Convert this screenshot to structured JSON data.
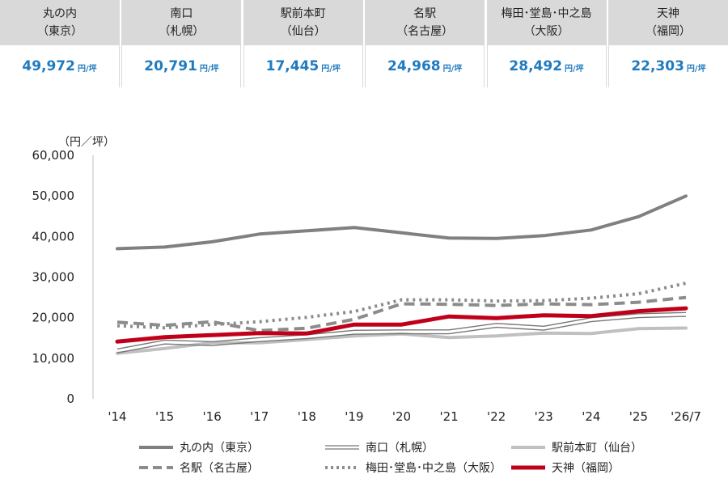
{
  "summary": {
    "unit": "円/坪",
    "cards": [
      {
        "name": "丸の内",
        "region": "（東京）",
        "value": "49,972"
      },
      {
        "name": "南口",
        "region": "（札幌）",
        "value": "20,791"
      },
      {
        "name": "駅前本町",
        "region": "（仙台）",
        "value": "17,445"
      },
      {
        "name": "名駅",
        "region": "（名古屋）",
        "value": "24,968"
      },
      {
        "name": "梅田･堂島･中之島",
        "region": "（大阪）",
        "value": "28,492"
      },
      {
        "name": "天神",
        "region": "（福岡）",
        "value": "22,303"
      }
    ]
  },
  "chart_data": {
    "type": "line",
    "ylabel": "（円／坪）",
    "ylim": [
      0,
      60000
    ],
    "yticks": [
      "0",
      "10,000",
      "20,000",
      "30,000",
      "40,000",
      "50,000",
      "60,000"
    ],
    "categories": [
      "'14",
      "'15",
      "'16",
      "'17",
      "'18",
      "'19",
      "'20",
      "'21",
      "'22",
      "'23",
      "'24",
      "'25",
      "'26/7"
    ],
    "grid": false,
    "legend_position": "bottom",
    "series": [
      {
        "name": "丸の内（東京）",
        "color": "#808080",
        "style": "solid",
        "values": [
          37000,
          37400,
          38700,
          40600,
          41400,
          42200,
          40900,
          39600,
          39500,
          40200,
          41600,
          44900,
          49972
        ]
      },
      {
        "name": "南口（札幌）",
        "color": "#777777",
        "style": "double",
        "values": [
          11800,
          14000,
          13600,
          14600,
          15300,
          16400,
          16500,
          16500,
          18100,
          17400,
          19500,
          20500,
          20791
        ]
      },
      {
        "name": "駅前本町（仙台）",
        "color": "#c0c0c0",
        "style": "solid",
        "values": [
          11200,
          12400,
          13800,
          13800,
          14600,
          15500,
          16000,
          15100,
          15500,
          16200,
          16100,
          17300,
          17445
        ]
      },
      {
        "name": "名駅（名古屋）",
        "color": "#8c8c8c",
        "style": "dashed",
        "values": [
          18900,
          18100,
          19000,
          16800,
          17400,
          19600,
          23400,
          23300,
          23000,
          23400,
          23200,
          23800,
          24968
        ]
      },
      {
        "name": "梅田･堂島･中之島（大阪）",
        "color": "#8c8c8c",
        "style": "dotted",
        "values": [
          18000,
          17500,
          18300,
          19000,
          20100,
          21500,
          24400,
          24400,
          24100,
          24200,
          24800,
          25900,
          28492
        ]
      },
      {
        "name": "天神（福岡）",
        "color": "#c0001a",
        "style": "bold",
        "values": [
          14100,
          15200,
          15700,
          16200,
          16100,
          18300,
          18300,
          20300,
          19900,
          20600,
          20400,
          21600,
          22303
        ]
      }
    ]
  }
}
